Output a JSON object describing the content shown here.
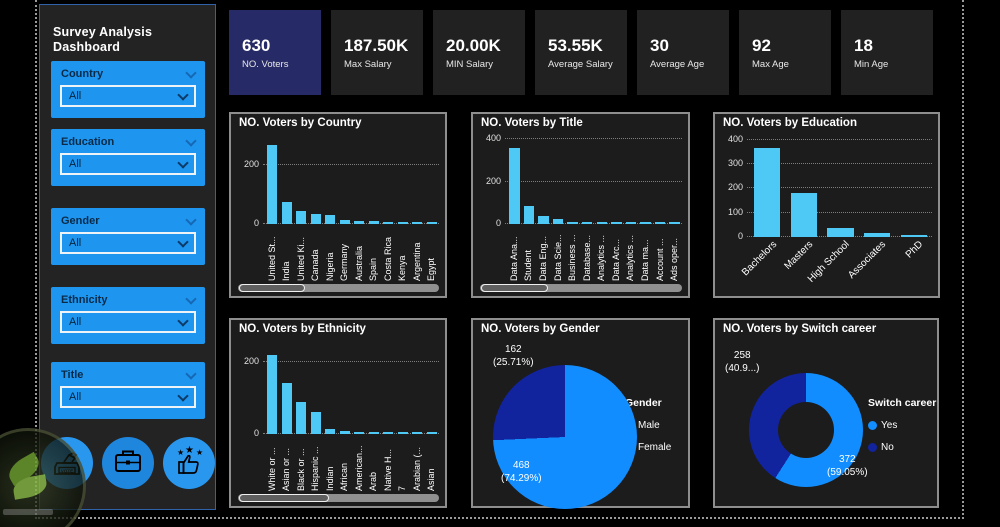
{
  "sidebar": {
    "title": "Survey Analysis Dashboard",
    "filters": [
      {
        "label": "Country",
        "value": "All"
      },
      {
        "label": "Education",
        "value": "All"
      },
      {
        "label": "Gender",
        "value": "All"
      },
      {
        "label": "Ethnicity",
        "value": "All"
      },
      {
        "label": "Title",
        "value": "All"
      }
    ],
    "icons": [
      {
        "name": "vote-ballot-icon"
      },
      {
        "name": "briefcase-icon"
      },
      {
        "name": "thumbs-up-stars-icon"
      }
    ]
  },
  "kpis": [
    {
      "value": "630",
      "label": "NO. Voters",
      "highlight": true
    },
    {
      "value": "187.50K",
      "label": "Max Salary"
    },
    {
      "value": "20.00K",
      "label": "MIN Salary"
    },
    {
      "value": "53.55K",
      "label": "Average Salary"
    },
    {
      "value": "30",
      "label": "Average Age"
    },
    {
      "value": "92",
      "label": "Max Age"
    },
    {
      "value": "18",
      "label": "Min Age"
    }
  ],
  "colors": {
    "filter_blue": "#1e96f0",
    "icon_blue": "#2a97ef",
    "icon_blue_dark": "#1f86dd",
    "bar_cyan": "#4ec9f5",
    "pie_blue": "#118DFF",
    "pie_dark_blue": "#12239E",
    "kpi_highlight_navy": "#262a66"
  },
  "chart_data": [
    {
      "type": "bar",
      "title": "NO. Voters by Country",
      "categories": [
        "United St...",
        "India",
        "United Ki...",
        "Canada",
        "Nigeria",
        "Germany",
        "Australia",
        "Spain",
        "Costa Rica",
        "Kenya",
        "Argentina",
        "Egypt"
      ],
      "values": [
        280,
        79,
        45,
        35,
        33,
        15,
        10,
        9,
        8,
        7,
        7,
        6
      ],
      "ylim": [
        0,
        300
      ],
      "yticks": [
        0,
        200
      ],
      "grid": "dotted",
      "label_style": "vertical",
      "bar_color": "#4ec9f5",
      "scrollbar": {
        "visible": true,
        "thumb_fraction": 0.33
      }
    },
    {
      "type": "bar",
      "title": "NO. Voters by Title",
      "categories": [
        "Data Ana...",
        "Student",
        "Data Eng...",
        "Data Scie...",
        "Business ...",
        "Database...",
        "Analytics ...",
        "Data Arc...",
        "Analytics ...",
        "Data ma...",
        "Account ...",
        "Ads oper..."
      ],
      "values": [
        375,
        90,
        40,
        27,
        12,
        8,
        6,
        5,
        5,
        4,
        4,
        3
      ],
      "ylim": [
        0,
        420
      ],
      "yticks": [
        0,
        200,
        400
      ],
      "grid": "dotted",
      "label_style": "vertical",
      "bar_color": "#4ec9f5",
      "scrollbar": {
        "visible": true,
        "thumb_fraction": 0.33
      }
    },
    {
      "type": "bar",
      "title": "NO. Voters by Education",
      "categories": [
        "Bachelors",
        "Masters",
        "High School",
        "Associates",
        "PhD"
      ],
      "values": [
        380,
        190,
        38,
        18,
        8
      ],
      "ylim": [
        0,
        420
      ],
      "yticks": [
        0,
        100,
        200,
        300,
        400
      ],
      "grid": "dotted",
      "label_style": "angled",
      "bar_color": "#4ec9f5",
      "scrollbar": {
        "visible": false,
        "thumb_fraction": 0
      }
    },
    {
      "type": "bar",
      "title": "NO. Voters by Ethnicity",
      "categories": [
        "White or ...",
        "Asian or ...",
        "Black or ...",
        "Hispanic ...",
        "Indian",
        "African",
        "American...",
        "Arab",
        "Native H...",
        "7",
        "Arabian (...",
        "Asian"
      ],
      "values": [
        232,
        150,
        94,
        65,
        15,
        8,
        6,
        5,
        5,
        4,
        4,
        4
      ],
      "ylim": [
        0,
        260
      ],
      "yticks": [
        0,
        200
      ],
      "grid": "dotted",
      "label_style": "vertical",
      "bar_color": "#4ec9f5",
      "scrollbar": {
        "visible": true,
        "thumb_fraction": 0.45
      }
    },
    {
      "type": "pie",
      "title": "NO. Voters by Gender",
      "variant": "pie-large",
      "legend_title": "Gender",
      "legend_position": "right",
      "slices": [
        {
          "label": "Male",
          "value": 468,
          "pct": "74.29%",
          "color": "#118DFF"
        },
        {
          "label": "Female",
          "value": 162,
          "pct": "25.71%",
          "color": "#12239E"
        }
      ],
      "callouts": [
        {
          "value": "162",
          "pct": "(25.71%)",
          "pos": "a"
        },
        {
          "value": "468",
          "pct": "(74.29%)",
          "pos": "b"
        }
      ]
    },
    {
      "type": "pie",
      "title": "NO. Voters by Switch career",
      "variant": "donut",
      "legend_title": "Switch career",
      "legend_position": "right",
      "slices": [
        {
          "label": "Yes",
          "value": 372,
          "pct": "59.05%",
          "color": "#118DFF"
        },
        {
          "label": "No",
          "value": 258,
          "pct": "40.9...",
          "color": "#12239E"
        }
      ],
      "callouts": [
        {
          "value": "258",
          "pct": "(40.9...)",
          "pos": "a"
        },
        {
          "value": "372",
          "pct": "(59.05%)",
          "pos": "b"
        }
      ]
    }
  ]
}
